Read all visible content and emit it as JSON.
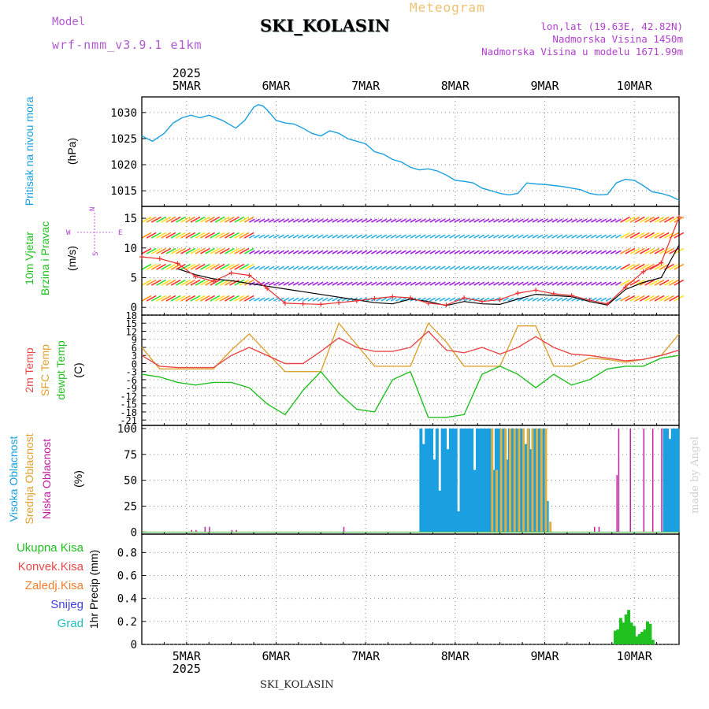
{
  "header": {
    "model_label": "Model",
    "model_value": "wrf-nmm_v3.9.1 e1km",
    "station": "SKI_KOLASIN",
    "meteogram": "Meteogram",
    "info_lonlat": "lon,lat (19.63E, 42.82N)",
    "info_elev": "Nadmorska Visina 1450m",
    "info_model_elev": "Nadmorska Visina u modelu 1671.99m"
  },
  "footer": {
    "station": "SKI_KOLASIN",
    "made_by": "made by Angel"
  },
  "colors": {
    "pressure": "#1aa0e0",
    "temp2m": "#e84848",
    "sfc": "#e0a030",
    "dewpt": "#20c020",
    "high_cloud": "#1aa0e0",
    "mid_cloud": "#e0b040",
    "low_cloud": "#c020a0",
    "precip": "#20c020",
    "convective": "#e84848",
    "freezing": "#f08030",
    "snow": "#4040e0",
    "hail": "#20c0c0",
    "wind_speed": "#e83030"
  },
  "time_axis": {
    "year": "2025",
    "days": [
      "5MAR",
      "6MAR",
      "7MAR",
      "8MAR",
      "9MAR",
      "10MAR"
    ],
    "start": "4MAR 12h",
    "end": "10MAR 12h"
  },
  "panels": {
    "pressure": {
      "label": "Pritisak na nivou mora",
      "unit": "(hPa)"
    },
    "wind": {
      "label1": "10m Vjetar",
      "label2": "Brzina i Pravac",
      "unit": "(m/s)",
      "compass_n": "N",
      "compass_s": "S",
      "compass_e": "E",
      "compass_w": "W"
    },
    "temp": {
      "label1": "2m Temp",
      "label2": "SFC Temp",
      "label3": "dewpt Temp",
      "unit": "(C)"
    },
    "cloud": {
      "label1": "Visoka Oblacnost",
      "label2": "Srednja Oblacnost",
      "label3": "Niska Oblacnost",
      "unit": "(%)"
    },
    "precip": {
      "labels": [
        "Ukupna Kisa",
        "Konvek.Kisa",
        "Zaledj.Kisa",
        "Snijeg",
        "Grad"
      ],
      "unit": "1hr Precip (mm)"
    }
  },
  "chart_data": [
    {
      "type": "line",
      "name": "pressure",
      "ylabel": "(hPa)",
      "ylim": [
        1012,
        1033
      ],
      "yticks": [
        1015,
        1020,
        1025,
        1030
      ],
      "x": [
        0,
        0.12,
        0.25,
        0.35,
        0.45,
        0.55,
        0.65,
        0.75,
        0.9,
        1.05,
        1.15,
        1.25,
        1.3,
        1.35,
        1.4,
        1.5,
        1.6,
        1.7,
        1.8,
        1.9,
        2.0,
        2.1,
        2.2,
        2.3,
        2.4,
        2.5,
        2.6,
        2.7,
        2.8,
        2.9,
        3.0,
        3.1,
        3.2,
        3.3,
        3.4,
        3.5,
        3.6,
        3.7,
        3.8,
        3.9,
        4.0,
        4.1,
        4.2,
        4.3,
        4.4,
        4.5,
        4.6,
        4.7,
        4.8,
        4.9,
        5.0,
        5.1,
        5.2,
        5.3,
        5.4,
        5.5,
        5.6,
        5.7,
        5.8,
        5.9,
        6.0
      ],
      "values": [
        1025.5,
        1024.5,
        1026,
        1028,
        1029,
        1029.5,
        1029,
        1029.5,
        1028.5,
        1027,
        1028.5,
        1031,
        1031.5,
        1031.3,
        1030.5,
        1028.5,
        1028,
        1027.8,
        1027,
        1026,
        1025.5,
        1026.5,
        1026,
        1025,
        1024.5,
        1024,
        1022.5,
        1022,
        1021,
        1020.5,
        1019.5,
        1019,
        1019.2,
        1018.8,
        1018,
        1017,
        1016.8,
        1016.5,
        1015.5,
        1015,
        1014.5,
        1014.2,
        1014.5,
        1016.5,
        1016.3,
        1016.2,
        1016,
        1015.8,
        1015.5,
        1015.2,
        1014.5,
        1014.2,
        1014.3,
        1016.5,
        1017.2,
        1017,
        1016,
        1014.8,
        1014.5,
        1014,
        1013.2
      ]
    },
    {
      "type": "line",
      "name": "wind",
      "ylabel": "(m/s)",
      "ylim": [
        -1.3,
        17
      ],
      "yticks": [
        0,
        5,
        10,
        15
      ],
      "series": [
        {
          "name": "speed",
          "x": [
            0,
            0.2,
            0.4,
            0.6,
            0.8,
            1.0,
            1.2,
            1.4,
            1.6,
            1.8,
            2.0,
            2.2,
            2.4,
            2.6,
            2.8,
            3.0,
            3.2,
            3.4,
            3.6,
            3.8,
            4.0,
            4.2,
            4.4,
            4.6,
            4.8,
            5.0,
            5.2,
            5.4,
            5.6,
            5.8,
            6.0
          ],
          "values": [
            8.5,
            8.2,
            7.4,
            5.2,
            4.4,
            5.8,
            5.4,
            3.2,
            0.7,
            0.6,
            0.5,
            0.8,
            1.1,
            1.5,
            1.8,
            1.6,
            0.7,
            0.4,
            1.6,
            1.0,
            1.3,
            2.4,
            2.9,
            2.3,
            2.0,
            1.2,
            0.6,
            3.4,
            6.0,
            7.5,
            15.2
          ]
        },
        {
          "name": "gust",
          "x": [
            0.4,
            0.6,
            0.8,
            1.0,
            2.6,
            2.8,
            3.0,
            3.2,
            3.4,
            3.6,
            3.8,
            4.0,
            4.2,
            4.4,
            4.6,
            4.8,
            5.0,
            5.2,
            5.4,
            5.6,
            5.8,
            6.0
          ],
          "values": [
            6.5,
            5.5,
            4.8,
            4.5,
            0.8,
            0.6,
            1.4,
            1.0,
            0.3,
            1.0,
            0.6,
            0.5,
            1.4,
            2.2,
            2.0,
            1.8,
            1.0,
            0.4,
            3.0,
            4.2,
            5.0,
            10.5
          ]
        }
      ]
    },
    {
      "type": "line",
      "name": "temperature",
      "ylabel": "(C)",
      "ylim": [
        -23,
        18
      ],
      "yticks": [
        18,
        15,
        12,
        9,
        6,
        3,
        0,
        -3,
        -6,
        -9,
        -12,
        -15,
        -18,
        -21
      ],
      "series": [
        {
          "name": "2m Temp",
          "x": [
            0,
            0.2,
            0.4,
            0.6,
            0.8,
            1.0,
            1.2,
            1.4,
            1.6,
            1.8,
            2.0,
            2.2,
            2.4,
            2.6,
            2.8,
            3.0,
            3.2,
            3.4,
            3.6,
            3.8,
            4.0,
            4.2,
            4.4,
            4.6,
            4.8,
            5.0,
            5.2,
            5.4,
            5.6,
            5.8,
            6.0
          ],
          "values": [
            3,
            -1,
            -1.5,
            -1.5,
            -1.5,
            3,
            6,
            3,
            0,
            0,
            4.5,
            9.5,
            6,
            4.5,
            4.5,
            6,
            12,
            5,
            4,
            6,
            3.5,
            6,
            10,
            6,
            3.5,
            3,
            2,
            1,
            1.5,
            3,
            5
          ]
        },
        {
          "name": "SFC Temp",
          "x": [
            0,
            0.2,
            0.4,
            0.6,
            0.8,
            1.0,
            1.2,
            1.4,
            1.6,
            1.8,
            2.0,
            2.2,
            2.4,
            2.6,
            2.8,
            3.0,
            3.2,
            3.4,
            3.6,
            3.8,
            4.0,
            4.2,
            4.4,
            4.6,
            4.8,
            5.0,
            5.2,
            5.4,
            5.6,
            5.8,
            6.0
          ],
          "values": [
            6,
            -2,
            -2,
            -2,
            -2,
            5,
            11,
            4,
            -3,
            -3,
            -3,
            15,
            7,
            -1,
            -1,
            -1,
            15,
            8,
            -1,
            -1,
            -1,
            14,
            14,
            -1,
            -1,
            2,
            1.5,
            0.5,
            1.5,
            3,
            11
          ]
        },
        {
          "name": "dewpt Temp",
          "x": [
            0,
            0.2,
            0.4,
            0.6,
            0.8,
            1.0,
            1.2,
            1.4,
            1.6,
            1.8,
            2.0,
            2.2,
            2.4,
            2.6,
            2.8,
            3.0,
            3.2,
            3.4,
            3.6,
            3.8,
            4.0,
            4.2,
            4.4,
            4.6,
            4.8,
            5.0,
            5.2,
            5.4,
            5.6,
            5.8,
            6.0
          ],
          "values": [
            -4,
            -5,
            -7,
            -8,
            -7,
            -7,
            -9,
            -15,
            -19,
            -10,
            -3,
            -11,
            -17,
            -18,
            -6,
            -3,
            -20,
            -20,
            -19,
            -4,
            -1,
            -4,
            -9,
            -4,
            -8,
            -6,
            -2,
            -1,
            -1,
            2,
            3
          ]
        }
      ]
    },
    {
      "type": "bar",
      "name": "cloud_cover",
      "ylabel": "(%)",
      "ylim": [
        -2,
        103
      ],
      "yticks": [
        0,
        25,
        50,
        75,
        100
      ],
      "series": [
        {
          "name": "Visoka Oblacnost",
          "x": [
            3.1,
            3.13,
            3.16,
            3.19,
            3.22,
            3.25,
            3.28,
            3.31,
            3.34,
            3.37,
            3.4,
            3.43,
            3.46,
            3.49,
            3.52,
            3.55,
            3.58,
            3.61,
            3.64,
            3.67,
            3.7,
            3.73,
            3.76,
            3.79,
            3.82,
            3.85,
            3.88,
            3.91,
            3.94,
            3.97,
            4.0,
            4.03,
            4.06,
            4.09,
            4.12,
            4.15,
            4.18,
            4.21,
            4.24,
            4.27,
            4.3,
            4.33,
            4.36,
            4.39,
            4.42,
            4.45,
            4.48,
            4.51,
            5.82,
            5.85,
            5.88,
            5.91,
            5.94,
            5.97
          ],
          "values": [
            100,
            85,
            100,
            100,
            100,
            70,
            100,
            40,
            100,
            100,
            80,
            100,
            100,
            100,
            20,
            100,
            100,
            100,
            100,
            100,
            60,
            100,
            100,
            100,
            100,
            100,
            100,
            60,
            100,
            100,
            100,
            100,
            70,
            100,
            100,
            100,
            100,
            100,
            100,
            85,
            100,
            80,
            100,
            100,
            100,
            100,
            100,
            30,
            100,
            100,
            90,
            100,
            100,
            100
          ]
        },
        {
          "name": "Srednja Oblacnost",
          "x": [
            3.9,
            3.95,
            4.0,
            4.05,
            4.1,
            4.15,
            4.2,
            4.25,
            4.3,
            4.35,
            4.4,
            4.45,
            4.5,
            4.55
          ],
          "values": [
            100,
            60,
            100,
            100,
            100,
            100,
            100,
            100,
            100,
            100,
            100,
            100,
            100,
            10
          ]
        },
        {
          "name": "Niska Oblacnost",
          "x": [
            0.55,
            0.6,
            0.7,
            0.75,
            1.0,
            1.05,
            2.25,
            5.05,
            5.1,
            5.3,
            5.32,
            5.45,
            5.6,
            5.7,
            5.8
          ],
          "values": [
            2,
            2,
            5,
            5,
            2,
            2,
            5,
            5,
            5,
            55,
            100,
            100,
            100,
            100,
            100
          ]
        }
      ]
    },
    {
      "type": "bar",
      "name": "precip",
      "ylabel": "1hr Precip (mm)",
      "ylim": [
        0,
        0.96
      ],
      "yticks": [
        0,
        0.2,
        0.4,
        0.6,
        0.8
      ],
      "series": [
        {
          "name": "Ukupna Kisa",
          "x": [
            5.27,
            5.3,
            5.33,
            5.36,
            5.39,
            5.42,
            5.45,
            5.48,
            5.51,
            5.54,
            5.57,
            5.6,
            5.63,
            5.66,
            5.69
          ],
          "values": [
            0.12,
            0.13,
            0.23,
            0.19,
            0.26,
            0.3,
            0.19,
            0.16,
            0.07,
            0.09,
            0.11,
            0.13,
            0.2,
            0.18,
            0.04
          ]
        }
      ]
    }
  ]
}
